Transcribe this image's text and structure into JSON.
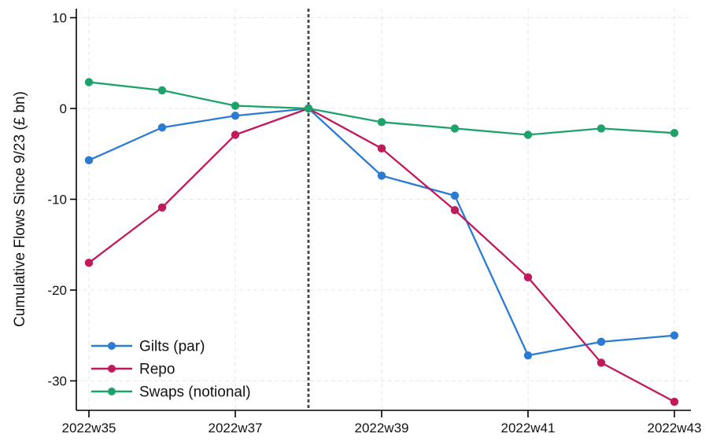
{
  "chart_data": {
    "type": "line",
    "title": "",
    "xlabel": "",
    "ylabel": "Cumulative Flows Since 9/23 (£ bn)",
    "x_categories": [
      "2022w35",
      "2022w36",
      "2022w37",
      "2022w38",
      "2022w39",
      "2022w40",
      "2022w41",
      "2022w42",
      "2022w43"
    ],
    "x_tick_indices": [
      0,
      2,
      4,
      6,
      8
    ],
    "x_tick_labels": [
      "2022w35",
      "2022w37",
      "2022w39",
      "2022w41",
      "2022w43"
    ],
    "y_ticks": [
      10,
      0,
      -10,
      -20,
      -30
    ],
    "y_tick_labels": [
      "10",
      "0",
      "-10",
      "-20",
      "-30"
    ],
    "ylim": [
      -33.3,
      11.0
    ],
    "grid": true,
    "legend_position": "inside-bottom-left",
    "reference_line": {
      "x_category": "2022w38",
      "x_index": 3,
      "style": "dashed",
      "color": "#474747"
    },
    "series": [
      {
        "name": "Gilts (par)",
        "color": "#2b7bd4",
        "values": [
          -5.7,
          -2.1,
          -0.8,
          0,
          -7.4,
          -9.6,
          -27.2,
          -25.7,
          -25.0
        ]
      },
      {
        "name": "Repo",
        "color": "#c0195c",
        "values": [
          -17.0,
          -10.9,
          -2.9,
          0,
          -4.4,
          -11.2,
          -18.6,
          -28.0,
          -32.3
        ]
      },
      {
        "name": "Swaps (notional)",
        "color": "#1da26b",
        "values": [
          2.9,
          2.0,
          0.3,
          0,
          -1.5,
          -2.2,
          -2.9,
          -2.2,
          -2.7
        ]
      }
    ],
    "colors": {
      "grid": "#e7e7e7",
      "axis": "#000000",
      "text": "#131313"
    }
  }
}
